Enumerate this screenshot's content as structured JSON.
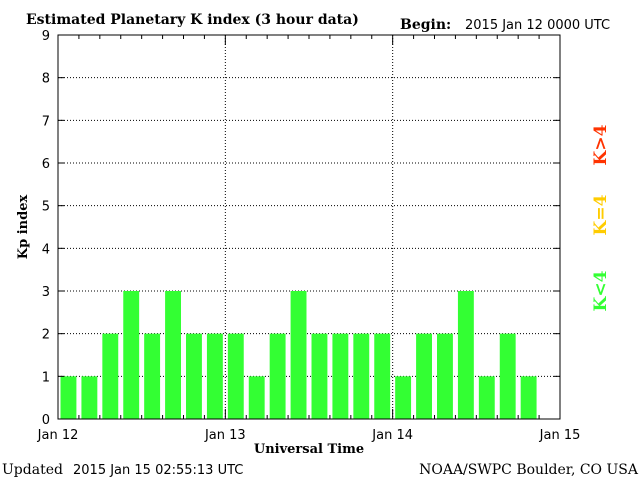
{
  "header": {
    "title": "Estimated Planetary K index (3 hour data)",
    "begin_label": "Begin:",
    "begin_value": "2015 Jan 12 0000 UTC"
  },
  "footer": {
    "updated_label": "Updated",
    "updated_value": "2015 Jan 15 02:55:13 UTC",
    "credit": "NOAA/SWPC Boulder, CO USA"
  },
  "legend": [
    {
      "label": "K>4",
      "color": "#ff3300"
    },
    {
      "label": "K=4",
      "color": "#ffcc00"
    },
    {
      "label": "K<4",
      "color": "#33ff33"
    }
  ],
  "chart_data": {
    "type": "bar",
    "title": "Estimated Planetary K index (3 hour data)",
    "xlabel": "Universal Time",
    "ylabel": "Kp index",
    "ylim": [
      0,
      9
    ],
    "yticks": [
      0,
      1,
      2,
      3,
      4,
      5,
      6,
      7,
      8,
      9
    ],
    "xticks": [
      "Jan 12",
      "Jan 13",
      "Jan 14",
      "Jan 15"
    ],
    "grid": "dotted, major ticks",
    "bar_color": "#33ff33",
    "categories": [
      "Jan 12 00",
      "Jan 12 03",
      "Jan 12 06",
      "Jan 12 09",
      "Jan 12 12",
      "Jan 12 15",
      "Jan 12 18",
      "Jan 12 21",
      "Jan 13 00",
      "Jan 13 03",
      "Jan 13 06",
      "Jan 13 09",
      "Jan 13 12",
      "Jan 13 15",
      "Jan 13 18",
      "Jan 13 21",
      "Jan 14 00",
      "Jan 14 03",
      "Jan 14 06",
      "Jan 14 09",
      "Jan 14 12",
      "Jan 14 15",
      "Jan 14 18",
      "Jan 14 21"
    ],
    "values": [
      1,
      1,
      2,
      3,
      2,
      3,
      2,
      2,
      2,
      1,
      2,
      3,
      2,
      2,
      2,
      2,
      1,
      2,
      2,
      3,
      1,
      2,
      1,
      0.01
    ]
  }
}
